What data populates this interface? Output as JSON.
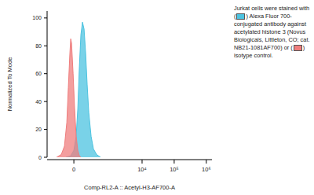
{
  "chart_data": {
    "type": "histogram",
    "xlabel": "Comp-RL2-A :: Acetyl-H3-AF700-A",
    "ylabel": "Normalized To Mode",
    "annotations": [
      "Jurkat cells were stained with (",
      ") Alexa Fluor 700-conjugated antibody against acetylated histone 3 (Novus Biologicals, Littleton, CO; cat. NB21-1081AF700) or (",
      ") isotype control."
    ],
    "xlim": [
      -500,
      1500000
    ],
    "xticks": [
      0,
      {
        "value": 10000,
        "label": "10⁴"
      },
      {
        "value": 100000,
        "label": "10⁵"
      },
      {
        "value": 1000000,
        "label": "10⁶"
      }
    ],
    "ylim": [
      0,
      105
    ],
    "yticks": [
      0,
      20,
      40,
      60,
      80,
      100
    ],
    "series": [
      {
        "color": "#4cc3e0",
        "x": [
          -89,
          -34,
          0,
          25,
          43,
          61,
          79,
          99,
          120,
          142,
          166,
          193,
          237,
          287,
          368,
          497
        ],
        "values": [
          0,
          1,
          5,
          15,
          35,
          65,
          88,
          97,
          92,
          75,
          52,
          32,
          15,
          6,
          2,
          0
        ]
      },
      {
        "color": "#ef7d7d",
        "x": [
          -237,
          -154,
          -109,
          -79,
          -61,
          -43,
          -34,
          -25,
          -8,
          8,
          25,
          43,
          61,
          79
        ],
        "values": [
          0,
          2,
          8,
          25,
          50,
          75,
          85,
          82,
          60,
          35,
          15,
          5,
          1,
          0
        ]
      }
    ]
  }
}
